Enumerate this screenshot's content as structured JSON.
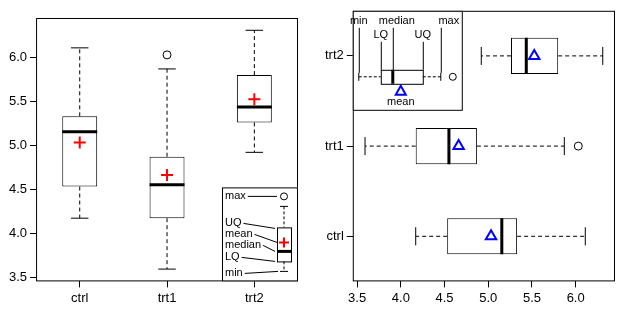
{
  "chart_data": [
    {
      "type": "boxplot",
      "categories": [
        "ctrl",
        "trt1",
        "trt2"
      ],
      "boxes": {
        "min": [
          4.17,
          3.59,
          4.92
        ],
        "lower_quartile": [
          4.53,
          4.17,
          5.26
        ],
        "median": [
          5.155,
          4.55,
          5.435
        ],
        "upper_quartile": [
          5.33,
          4.87,
          5.8
        ],
        "max": [
          6.11,
          5.87,
          6.31
        ],
        "outliers": [
          [],
          [
            6.03
          ],
          []
        ]
      },
      "series": [
        {
          "name": "mean",
          "values": [
            5.032,
            4.661,
            5.526
          ],
          "color": "#ff0000",
          "marker": "plus"
        }
      ],
      "ylim": [
        3.45,
        6.45
      ],
      "yticks": [
        3.5,
        {
          "value": 4,
          "label": "4.0"
        },
        4.5,
        {
          "value": 5,
          "label": "5.0"
        },
        5.5,
        {
          "value": 6,
          "label": "6.0"
        }
      ],
      "grid": false,
      "annotations": [
        "max",
        "UQ",
        "mean",
        "median",
        "LQ",
        "min"
      ]
    },
    {
      "type": "boxplot",
      "orientation": "horizontal",
      "categories": [
        "ctrl",
        "trt1",
        "trt2"
      ],
      "boxes": {
        "min": [
          4.17,
          3.59,
          4.92
        ],
        "lower_quartile": [
          4.53,
          4.17,
          5.26
        ],
        "median": [
          5.155,
          4.55,
          5.435
        ],
        "upper_quartile": [
          5.33,
          4.87,
          5.8
        ],
        "max": [
          6.11,
          5.87,
          6.31
        ],
        "outliers": [
          [],
          [
            6.03
          ],
          []
        ]
      },
      "series": [
        {
          "name": "mean",
          "values": [
            5.032,
            4.661,
            5.526
          ],
          "color": "#0000ff",
          "marker": "triangle"
        }
      ],
      "xlim": [
        3.45,
        6.45
      ],
      "xticks": [
        3.5,
        {
          "value": 4,
          "label": "4.0"
        },
        4.5,
        {
          "value": 5,
          "label": "5.0"
        },
        5.5,
        {
          "value": 6,
          "label": "6.0"
        }
      ],
      "grid": false,
      "annotations": [
        "min",
        "LQ",
        "median",
        "UQ",
        "max",
        "mean"
      ]
    }
  ]
}
